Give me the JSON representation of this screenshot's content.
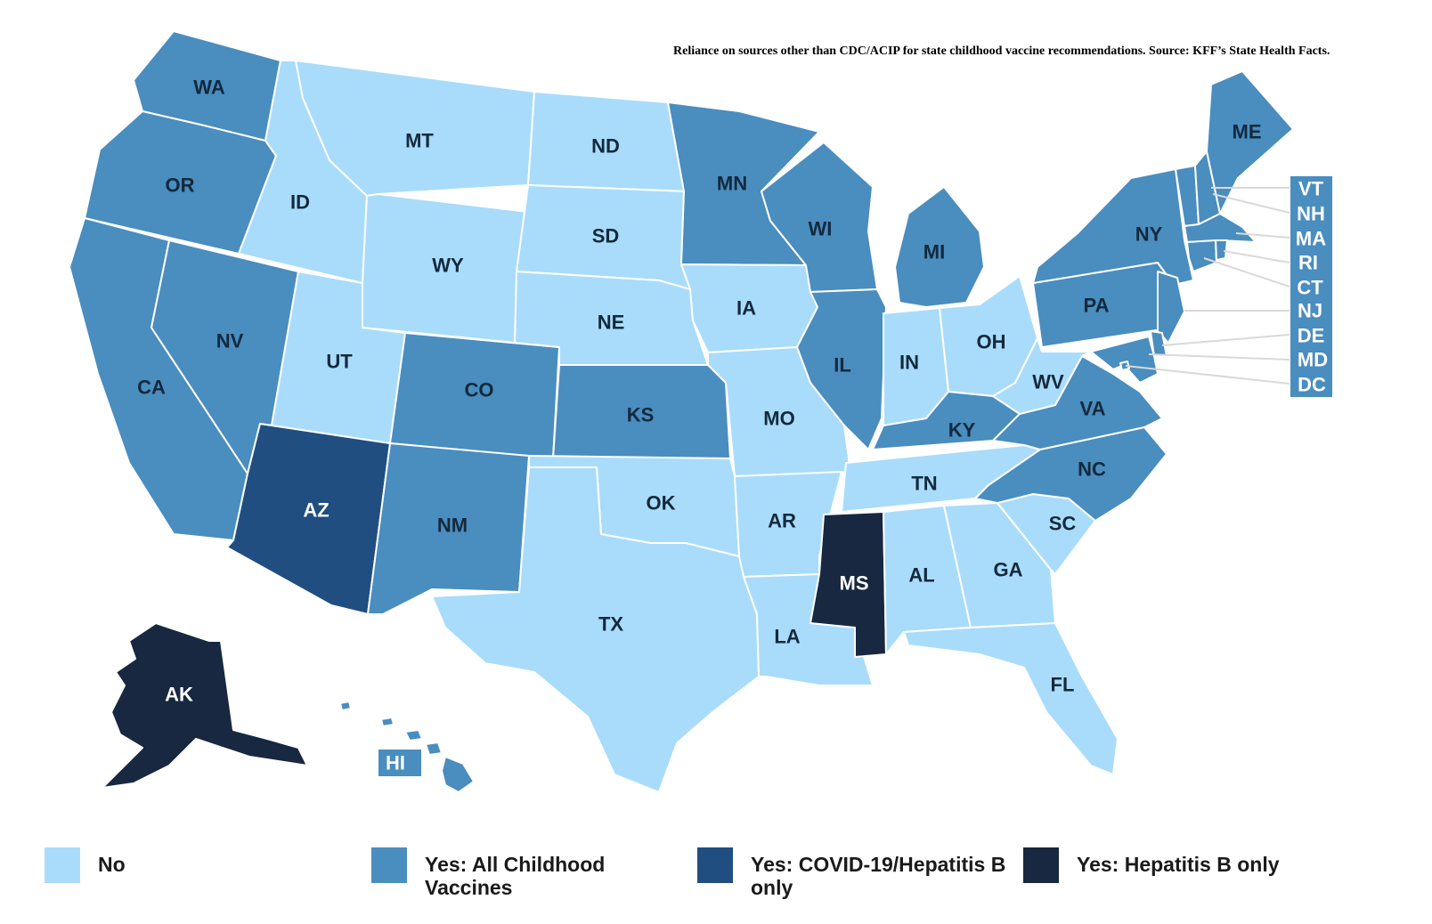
{
  "caption": "Reliance on sources other than CDC/ACIP for state childhood vaccine recommendations. Source: KFF’s State Health Facts.",
  "colors": {
    "no": "#a9dcfa",
    "all": "#4a8dbf",
    "covid_hepb": "#214e80",
    "hepb": "#172840"
  },
  "legend": [
    {
      "key": "no",
      "label": "No"
    },
    {
      "key": "all",
      "label": "Yes: All Childhood Vaccines"
    },
    {
      "key": "covid_hepb",
      "label": "Yes: COVID-19/Hepatitis B only"
    },
    {
      "key": "hepb",
      "label": "Yes: Hepatitis B only"
    }
  ],
  "states": {
    "WA": "all",
    "OR": "all",
    "CA": "all",
    "NV": "all",
    "ID": "no",
    "MT": "no",
    "WY": "no",
    "UT": "no",
    "CO": "all",
    "AZ": "covid_hepb",
    "NM": "all",
    "ND": "no",
    "SD": "no",
    "NE": "no",
    "KS": "all",
    "OK": "no",
    "TX": "no",
    "MN": "all",
    "IA": "no",
    "MO": "no",
    "AR": "no",
    "LA": "no",
    "WI": "all",
    "IL": "all",
    "MI": "all",
    "IN": "no",
    "OH": "no",
    "KY": "all",
    "TN": "no",
    "MS": "hepb",
    "AL": "no",
    "GA": "no",
    "FL": "no",
    "SC": "no",
    "NC": "all",
    "VA": "all",
    "WV": "no",
    "PA": "all",
    "NY": "all",
    "ME": "all",
    "VT": "all",
    "NH": "all",
    "MA": "all",
    "RI": "all",
    "CT": "all",
    "NJ": "all",
    "DE": "all",
    "MD": "all",
    "DC": "all",
    "AK": "hepb",
    "HI": "all"
  }
}
